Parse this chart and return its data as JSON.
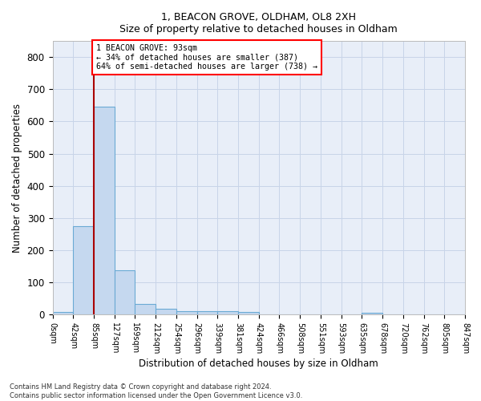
{
  "title_line1": "1, BEACON GROVE, OLDHAM, OL8 2XH",
  "title_line2": "Size of property relative to detached houses in Oldham",
  "xlabel": "Distribution of detached houses by size in Oldham",
  "ylabel": "Number of detached properties",
  "footer": "Contains HM Land Registry data © Crown copyright and database right 2024.\nContains public sector information licensed under the Open Government Licence v3.0.",
  "bin_labels": [
    "0sqm",
    "42sqm",
    "85sqm",
    "127sqm",
    "169sqm",
    "212sqm",
    "254sqm",
    "296sqm",
    "339sqm",
    "381sqm",
    "424sqm",
    "466sqm",
    "508sqm",
    "551sqm",
    "593sqm",
    "635sqm",
    "678sqm",
    "720sqm",
    "762sqm",
    "805sqm",
    "847sqm"
  ],
  "bar_values": [
    8,
    275,
    645,
    138,
    34,
    18,
    12,
    10,
    10,
    9,
    0,
    0,
    0,
    0,
    0,
    5,
    0,
    0,
    0,
    0
  ],
  "bar_color": "#c5d8ef",
  "bar_edge_color": "#6aaad4",
  "grid_color": "#c8d4e8",
  "background_color": "#e8eef8",
  "vline_x": 2,
  "annotation_text": "1 BEACON GROVE: 93sqm\n← 34% of detached houses are smaller (387)\n64% of semi-detached houses are larger (738) →",
  "annotation_box_color": "white",
  "annotation_box_edge": "red",
  "vline_color": "#aa0000",
  "ylim": [
    0,
    850
  ],
  "yticks": [
    0,
    100,
    200,
    300,
    400,
    500,
    600,
    700,
    800
  ]
}
